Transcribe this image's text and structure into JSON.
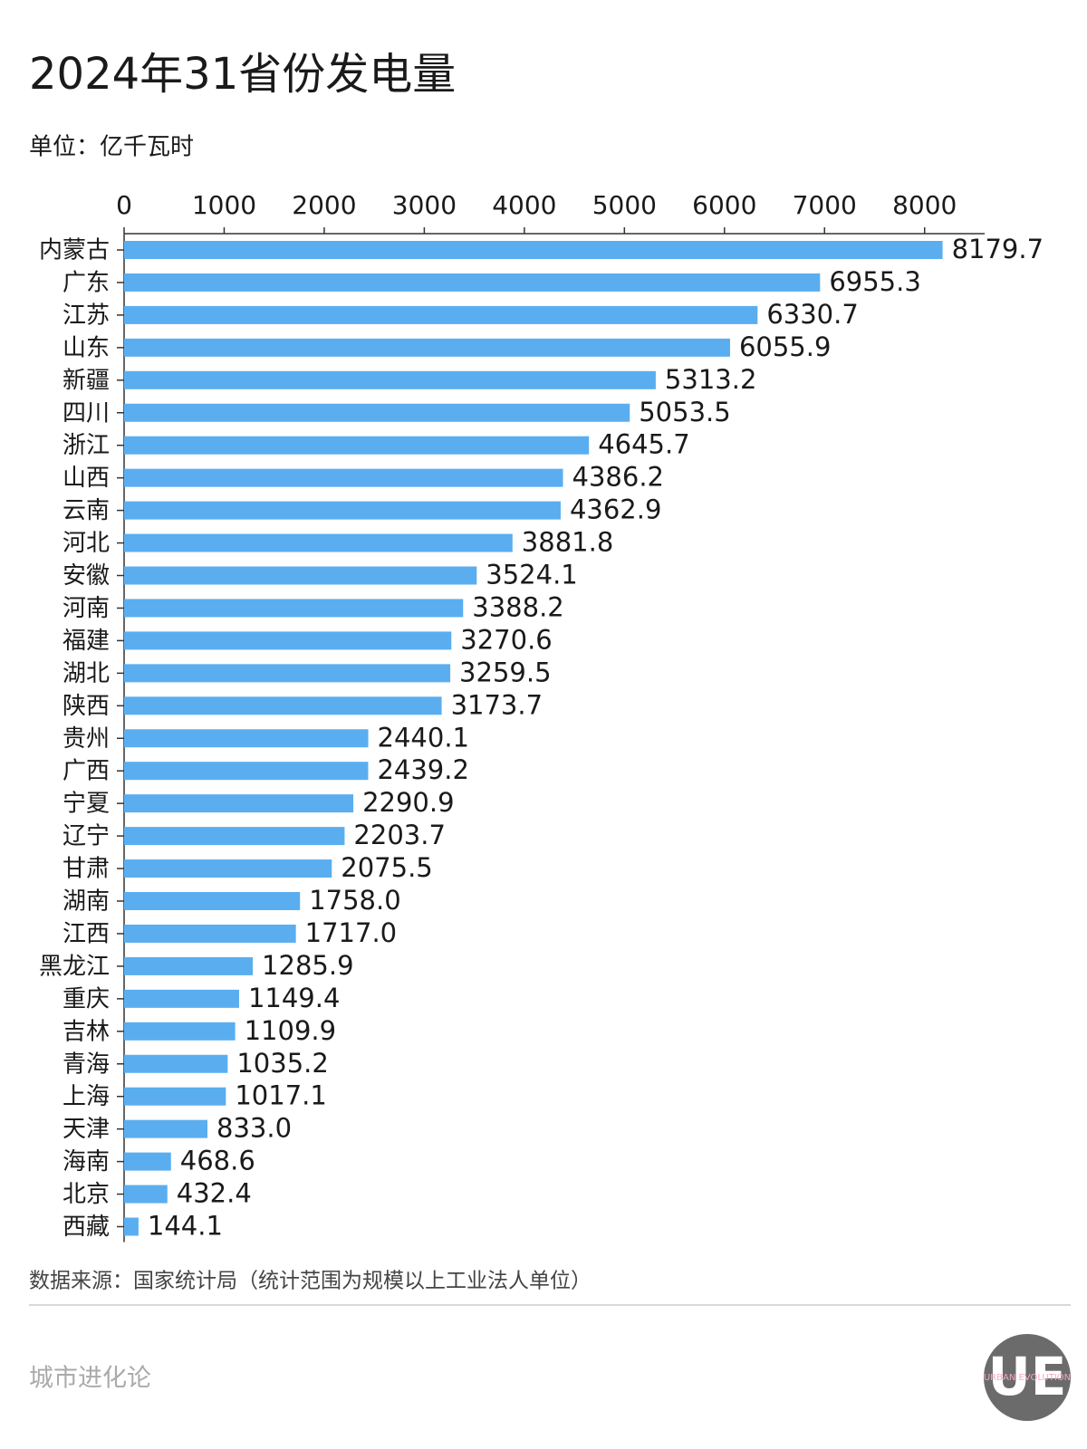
{
  "chart_data": {
    "type": "bar",
    "orientation": "horizontal",
    "title": "2024年31省份发电量",
    "subtitle": "单位：亿千瓦时",
    "source": "数据来源：国家统计局（统计范围为规模以上工业法人单位）",
    "categories": [
      "内蒙古",
      "广东",
      "江苏",
      "山东",
      "新疆",
      "四川",
      "浙江",
      "山西",
      "云南",
      "河北",
      "安徽",
      "河南",
      "福建",
      "湖北",
      "陕西",
      "贵州",
      "广西",
      "宁夏",
      "辽宁",
      "甘肃",
      "湖南",
      "江西",
      "黑龙江",
      "重庆",
      "吉林",
      "青海",
      "上海",
      "天津",
      "海南",
      "北京",
      "西藏"
    ],
    "values": [
      8179.7,
      6955.3,
      6330.7,
      6055.9,
      5313.2,
      5053.5,
      4645.7,
      4386.2,
      4362.9,
      3881.8,
      3524.1,
      3388.2,
      3270.6,
      3259.5,
      3173.7,
      2440.1,
      2439.2,
      2290.9,
      2203.7,
      2075.5,
      1758.0,
      1717.0,
      1285.9,
      1149.4,
      1109.9,
      1035.2,
      1017.1,
      833.0,
      468.6,
      432.4,
      144.1
    ],
    "value_labels": [
      "8179.7",
      "6955.3",
      "6330.7",
      "6055.9",
      "5313.2",
      "5053.5",
      "4645.7",
      "4386.2",
      "4362.9",
      "3881.8",
      "3524.1",
      "3388.2",
      "3270.6",
      "3259.5",
      "3173.7",
      "2440.1",
      "2439.2",
      "2290.9",
      "2203.7",
      "2075.5",
      "1758.0",
      "1717.0",
      "1285.9",
      "1149.4",
      "1109.9",
      "1035.2",
      "1017.1",
      "833.0",
      "468.6",
      "432.4",
      "144.1"
    ],
    "color": "#5aaef0",
    "xlim": [
      0,
      8600
    ],
    "xticks": [
      0,
      1000,
      2000,
      3000,
      4000,
      5000,
      6000,
      7000,
      8000
    ],
    "grid": false
  },
  "footer": {
    "brand": "城市进化论",
    "logo": "UE",
    "logo_text": "URBAN EVOLUTION"
  }
}
